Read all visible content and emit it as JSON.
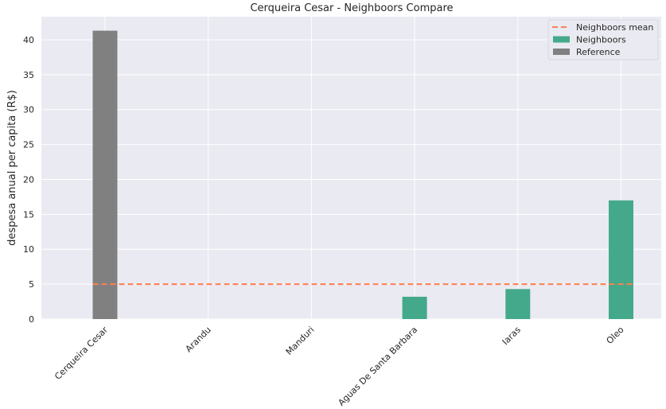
{
  "chart_data": {
    "type": "bar",
    "title": "Cerqueira Cesar - Neighboors Compare",
    "xlabel": "",
    "ylabel": "despesa anual per capita (R$)",
    "categories": [
      "Cerqueira Cesar",
      "Arandu",
      "Manduri",
      "Aguas De Santa Barbara",
      "Iaras",
      "Oleo"
    ],
    "series": [
      {
        "name": "Reference",
        "values": [
          41.3,
          0,
          0,
          0,
          0,
          0
        ],
        "color": "#808080"
      },
      {
        "name": "Neighboors",
        "values": [
          0,
          0,
          0,
          3.2,
          4.3,
          17.0
        ],
        "color": "#44a98a"
      }
    ],
    "mean_line": {
      "name": "Neighboors mean",
      "value": 5.0,
      "color": "#ff7f50",
      "style": "dashed"
    },
    "ylim": [
      0,
      43.3
    ],
    "yticks": [
      0,
      5,
      10,
      15,
      20,
      25,
      30,
      35,
      40
    ],
    "grid": true,
    "legend_position": "top-right",
    "legend_order": [
      "Neighboors mean",
      "Neighboors",
      "Reference"
    ],
    "background": "#eaeaf2"
  }
}
